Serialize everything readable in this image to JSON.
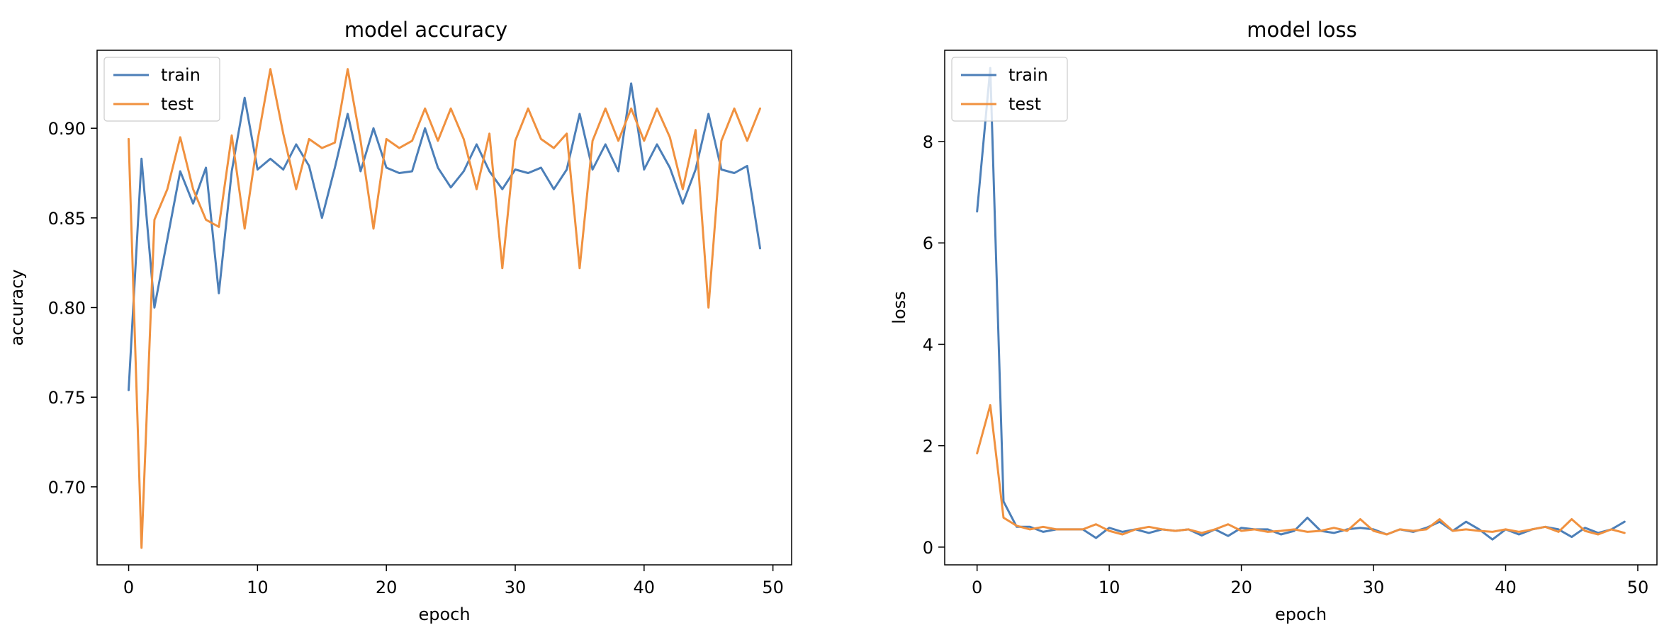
{
  "chart_data": [
    {
      "type": "line",
      "title": "model accuracy",
      "xlabel": "epoch",
      "ylabel": "accuracy",
      "xlim": [
        -2.45,
        51.45
      ],
      "ylim": [
        0.6565,
        0.9435
      ],
      "xticks": [
        0,
        10,
        20,
        30,
        40,
        50
      ],
      "yticks": [
        0.7,
        0.75,
        0.8,
        0.85,
        0.9
      ],
      "ytick_labels": [
        "0.70",
        "0.75",
        "0.80",
        "0.85",
        "0.90"
      ],
      "legend_position": "upper-left",
      "grid": false,
      "x": [
        0,
        1,
        2,
        3,
        4,
        5,
        6,
        7,
        8,
        9,
        10,
        11,
        12,
        13,
        14,
        15,
        16,
        17,
        18,
        19,
        20,
        21,
        22,
        23,
        24,
        25,
        26,
        27,
        28,
        29,
        30,
        31,
        32,
        33,
        34,
        35,
        36,
        37,
        38,
        39,
        40,
        41,
        42,
        43,
        44,
        45,
        46,
        47,
        48,
        49
      ],
      "series": [
        {
          "name": "train",
          "color": "#4c7fb8",
          "values": [
            0.754,
            0.883,
            0.8,
            0.838,
            0.876,
            0.858,
            0.878,
            0.808,
            0.876,
            0.917,
            0.877,
            0.883,
            0.877,
            0.891,
            0.879,
            0.85,
            0.878,
            0.908,
            0.876,
            0.9,
            0.878,
            0.875,
            0.876,
            0.9,
            0.878,
            0.867,
            0.876,
            0.891,
            0.876,
            0.866,
            0.877,
            0.875,
            0.878,
            0.866,
            0.877,
            0.908,
            0.877,
            0.891,
            0.876,
            0.925,
            0.877,
            0.891,
            0.878,
            0.858,
            0.877,
            0.908,
            0.877,
            0.875,
            0.879,
            0.833
          ]
        },
        {
          "name": "test",
          "color": "#f0913f",
          "values": [
            0.894,
            0.666,
            0.849,
            0.866,
            0.895,
            0.866,
            0.849,
            0.845,
            0.896,
            0.844,
            0.893,
            0.933,
            0.897,
            0.866,
            0.894,
            0.889,
            0.892,
            0.933,
            0.893,
            0.844,
            0.894,
            0.889,
            0.893,
            0.911,
            0.893,
            0.911,
            0.894,
            0.866,
            0.897,
            0.822,
            0.893,
            0.911,
            0.894,
            0.889,
            0.897,
            0.822,
            0.893,
            0.911,
            0.893,
            0.911,
            0.893,
            0.911,
            0.895,
            0.866,
            0.899,
            0.8,
            0.893,
            0.911,
            0.893,
            0.911
          ]
        }
      ]
    },
    {
      "type": "line",
      "title": "model loss",
      "xlabel": "epoch",
      "ylabel": "loss",
      "xlim": [
        -2.45,
        51.45
      ],
      "ylim": [
        -0.35,
        9.8
      ],
      "xticks": [
        0,
        10,
        20,
        30,
        40,
        50
      ],
      "yticks": [
        0,
        2,
        4,
        6,
        8
      ],
      "ytick_labels": [
        "0",
        "2",
        "4",
        "6",
        "8"
      ],
      "legend_position": "upper-left",
      "grid": false,
      "x": [
        0,
        1,
        2,
        3,
        4,
        5,
        6,
        7,
        8,
        9,
        10,
        11,
        12,
        13,
        14,
        15,
        16,
        17,
        18,
        19,
        20,
        21,
        22,
        23,
        24,
        25,
        26,
        27,
        28,
        29,
        30,
        31,
        32,
        33,
        34,
        35,
        36,
        37,
        38,
        39,
        40,
        41,
        42,
        43,
        44,
        45,
        46,
        47,
        48,
        49
      ],
      "series": [
        {
          "name": "train",
          "color": "#4c7fb8",
          "values": [
            6.62,
            9.45,
            0.9,
            0.4,
            0.4,
            0.3,
            0.35,
            0.35,
            0.35,
            0.18,
            0.38,
            0.3,
            0.35,
            0.28,
            0.35,
            0.32,
            0.35,
            0.23,
            0.35,
            0.22,
            0.38,
            0.35,
            0.35,
            0.25,
            0.32,
            0.58,
            0.32,
            0.28,
            0.35,
            0.38,
            0.35,
            0.25,
            0.35,
            0.3,
            0.38,
            0.5,
            0.32,
            0.5,
            0.35,
            0.15,
            0.35,
            0.25,
            0.35,
            0.4,
            0.35,
            0.2,
            0.38,
            0.28,
            0.35,
            0.5
          ]
        },
        {
          "name": "test",
          "color": "#f0913f",
          "values": [
            1.85,
            2.8,
            0.58,
            0.42,
            0.35,
            0.4,
            0.35,
            0.35,
            0.35,
            0.45,
            0.32,
            0.25,
            0.35,
            0.4,
            0.35,
            0.32,
            0.35,
            0.28,
            0.35,
            0.45,
            0.32,
            0.35,
            0.3,
            0.32,
            0.35,
            0.3,
            0.32,
            0.38,
            0.32,
            0.55,
            0.32,
            0.25,
            0.35,
            0.32,
            0.35,
            0.55,
            0.32,
            0.35,
            0.32,
            0.3,
            0.35,
            0.3,
            0.35,
            0.4,
            0.3,
            0.55,
            0.32,
            0.25,
            0.35,
            0.28
          ]
        }
      ]
    }
  ]
}
